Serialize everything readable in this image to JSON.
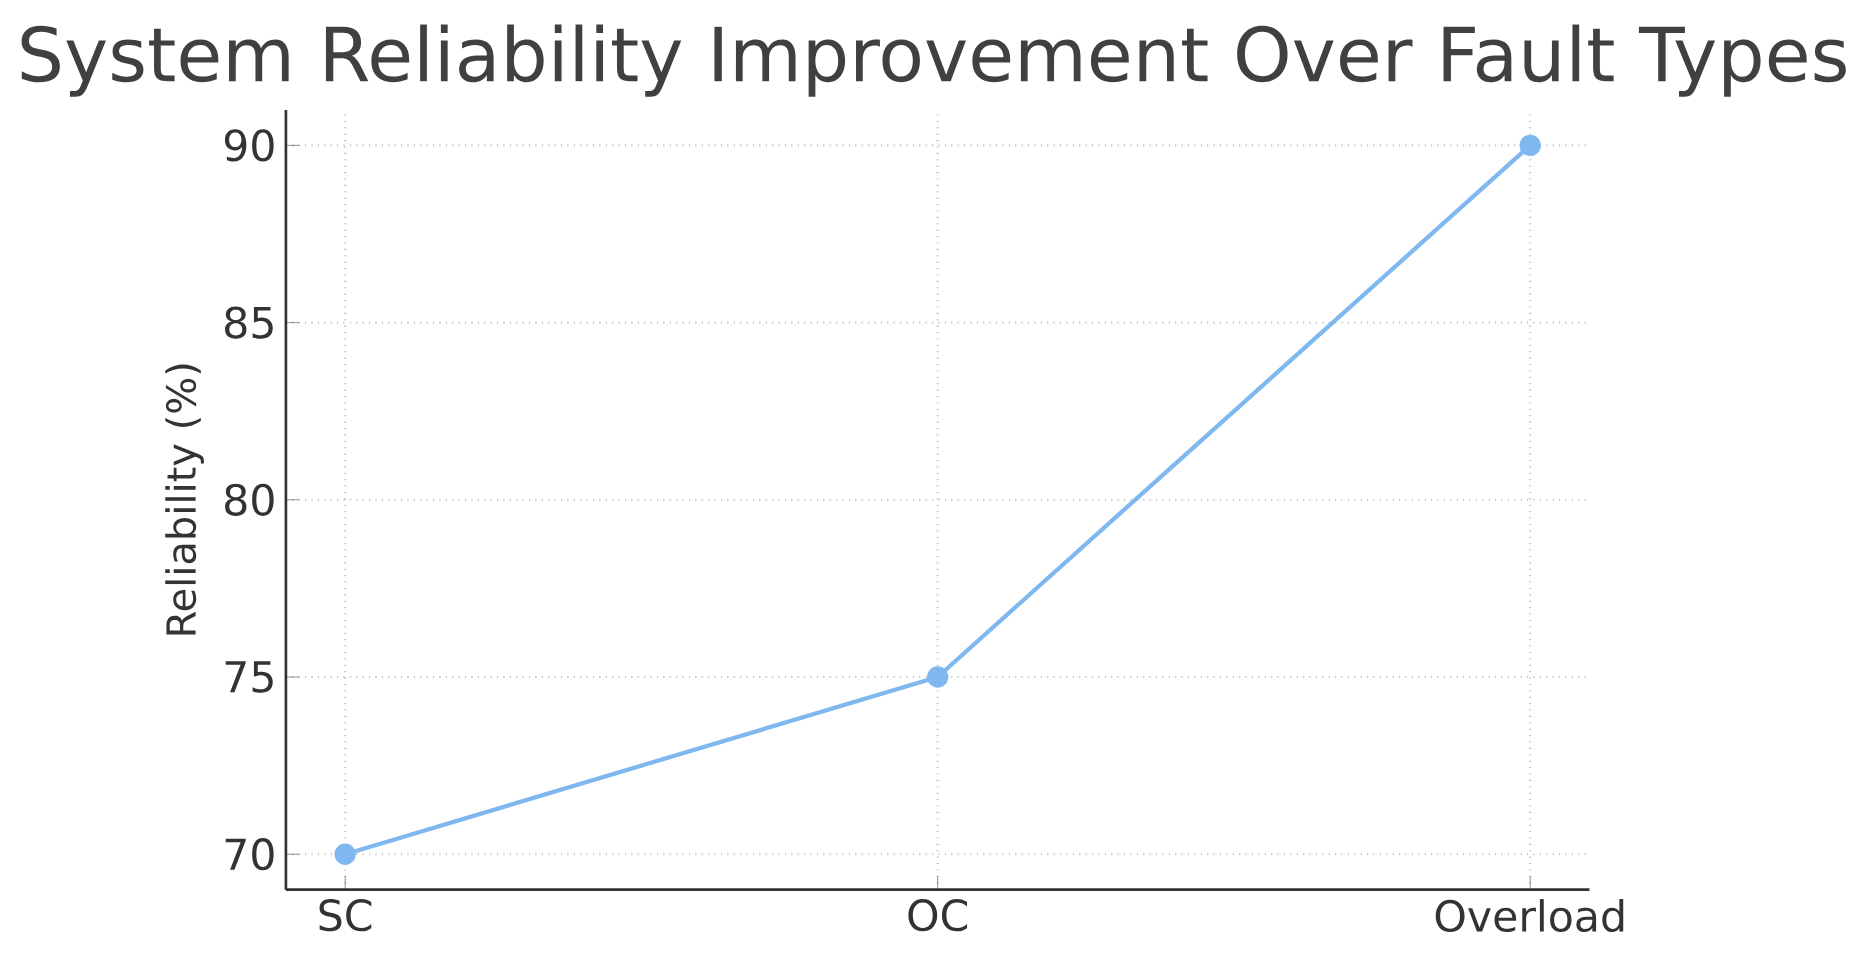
{
  "chart_data": {
    "type": "line",
    "title": "System Reliability Improvement Over Fault Types",
    "ylabel": "Reliability (%)",
    "categories": [
      "SC",
      "OC",
      "Overload"
    ],
    "series": [
      {
        "color": "#7fb8f0",
        "values": [
          70,
          75,
          90
        ]
      }
    ],
    "ylim": [
      69,
      91
    ],
    "yticks": [
      70,
      75,
      80,
      85,
      90
    ],
    "grid": true,
    "marker": "circle",
    "line_style": "solid"
  }
}
